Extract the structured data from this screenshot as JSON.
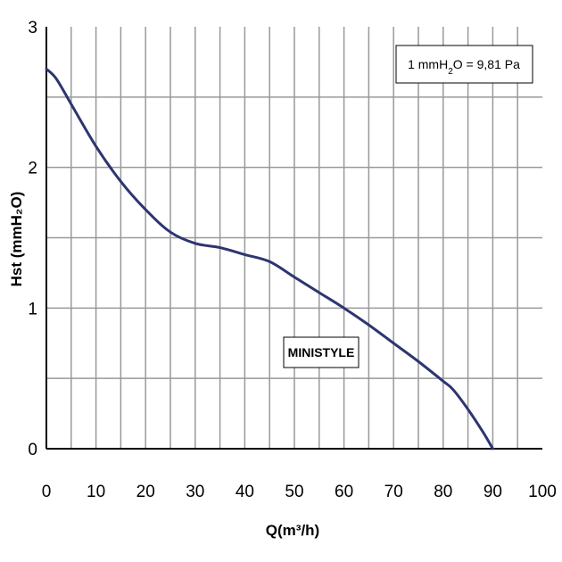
{
  "chart_data": {
    "type": "line",
    "title": "",
    "xlabel": "Q(m³/h)",
    "ylabel": "Hst (mmH₂O)",
    "xlim": [
      0,
      100
    ],
    "ylim": [
      0,
      3
    ],
    "x_ticks": [
      "0",
      "10",
      "20",
      "30",
      "40",
      "50",
      "60",
      "70",
      "80",
      "90",
      "100"
    ],
    "y_ticks": [
      "0",
      "1",
      "2",
      "3"
    ],
    "grid": {
      "vertical_every": 5,
      "horizontal_every": 0.5
    },
    "series": [
      {
        "name": "MINISTYLE",
        "color": "#2e3570",
        "x": [
          0,
          2,
          5,
          10,
          15,
          20,
          25,
          30,
          35,
          40,
          45,
          50,
          55,
          60,
          65,
          70,
          75,
          80,
          82,
          85,
          88,
          90
        ],
        "y": [
          2.7,
          2.63,
          2.45,
          2.15,
          1.9,
          1.7,
          1.54,
          1.46,
          1.43,
          1.38,
          1.33,
          1.22,
          1.11,
          1.0,
          0.88,
          0.75,
          0.62,
          0.48,
          0.42,
          0.28,
          0.12,
          0.0
        ]
      }
    ],
    "annotations": [
      {
        "text": "MINISTYLE",
        "x": 48,
        "y": 0.68
      }
    ],
    "note": {
      "prefix": "1 mmH",
      "subscript": "2",
      "suffix": "O = 9,81 Pa"
    },
    "colors": {
      "line": "#2e3570",
      "grid": "#999999",
      "frame": "#000000"
    }
  }
}
